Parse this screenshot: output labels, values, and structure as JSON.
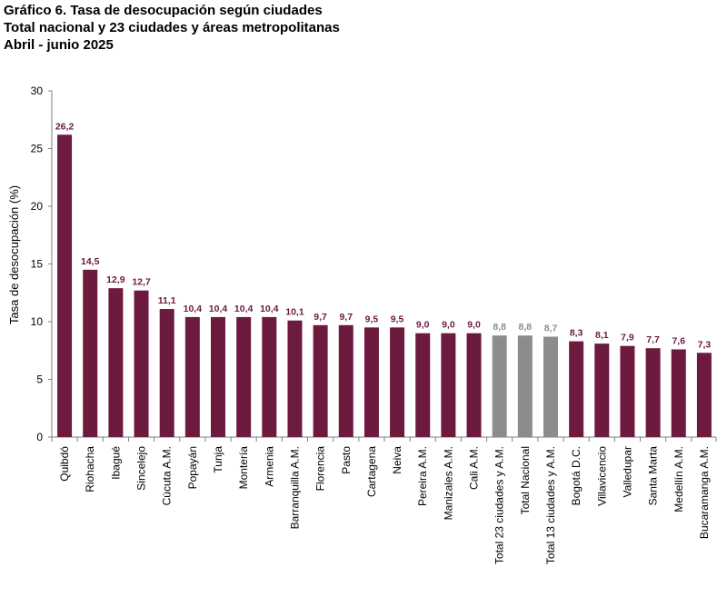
{
  "title": {
    "line1": "Gráfico 6. Tasa de desocupación según ciudades",
    "line2": "Total nacional y 23 ciudades y áreas metropolitanas",
    "line3": "Abril - junio 2025"
  },
  "colors": {
    "city": "#6d1a3f",
    "aggregate": "#8c8c8c",
    "axis": "#7f7f7f"
  },
  "chart_data": {
    "type": "bar",
    "ylabel": "Tasa de desocupación (%)",
    "xlabel": "",
    "ylim": [
      0,
      30
    ],
    "yticks": [
      0,
      5,
      10,
      15,
      20,
      25,
      30
    ],
    "grid": false,
    "categories": [
      "Quibdó",
      "Riohacha",
      "Ibagué",
      "Sincelejo",
      "Cúcuta A.M.",
      "Popayán",
      "Tunja",
      "Montería",
      "Armenia",
      "Barranquilla A.M.",
      "Florencia",
      "Pasto",
      "Cartagena",
      "Neiva",
      "Pereira A.M.",
      "Manizales A.M.",
      "Cali A.M.",
      "Total 23 ciudades y A.M.",
      "Total Nacional",
      "Total 13 ciudades y A.M.",
      "Bogotá D.C.",
      "Villavicencio",
      "Valledupar",
      "Santa Marta",
      "Medellín A.M.",
      "Bucaramanga A.M."
    ],
    "values": [
      26.2,
      14.5,
      12.9,
      12.7,
      11.1,
      10.4,
      10.4,
      10.4,
      10.4,
      10.1,
      9.7,
      9.7,
      9.5,
      9.5,
      9.0,
      9.0,
      9.0,
      8.8,
      8.8,
      8.7,
      8.3,
      8.1,
      7.9,
      7.7,
      7.6,
      7.3
    ],
    "labels": [
      "26,2",
      "14,5",
      "12,9",
      "12,7",
      "11,1",
      "10,4",
      "10,4",
      "10,4",
      "10,4",
      "10,1",
      "9,7",
      "9,7",
      "9,5",
      "9,5",
      "9,0",
      "9,0",
      "9,0",
      "8,8",
      "8,8",
      "8,7",
      "8,3",
      "8,1",
      "7,9",
      "7,7",
      "7,6",
      "7,3"
    ],
    "highlight": [
      false,
      false,
      false,
      false,
      false,
      false,
      false,
      false,
      false,
      false,
      false,
      false,
      false,
      false,
      false,
      false,
      false,
      true,
      true,
      true,
      false,
      false,
      false,
      false,
      false,
      false
    ]
  }
}
